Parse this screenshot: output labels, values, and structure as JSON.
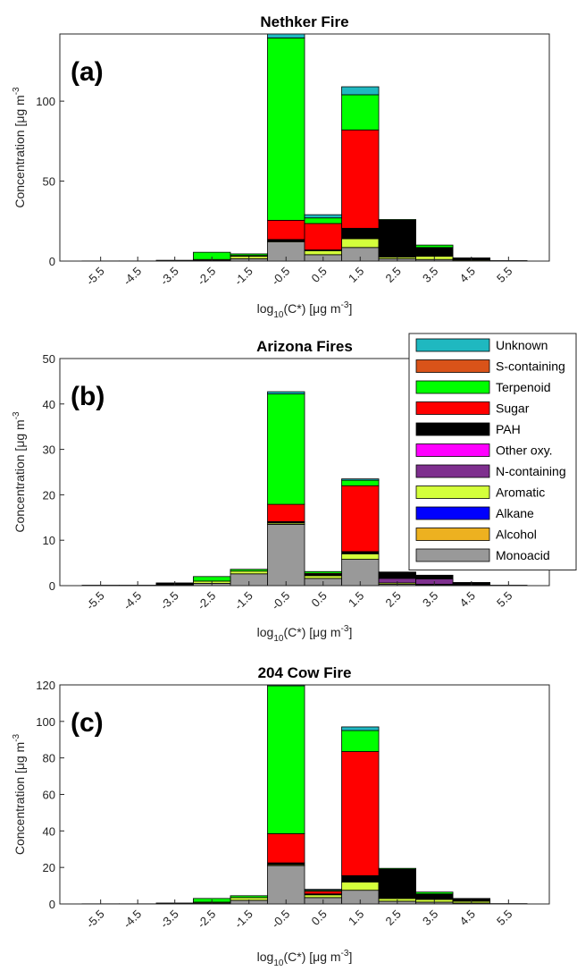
{
  "chart_data": [
    {
      "type": "bar",
      "stacked": true,
      "title": "Nethker Fire",
      "panel_label": "(a)",
      "xlabel": {
        "base": "log",
        "sub": "10",
        "main": "(C*) [μg m",
        "sup": "-3",
        "end": "]"
      },
      "ylabel": {
        "main": "Concentration [μg m",
        "sup": "-3"
      },
      "x": [
        -5.5,
        -4.5,
        -3.5,
        -2.5,
        -1.5,
        -0.5,
        0.5,
        1.5,
        2.5,
        3.5,
        4.5,
        5.5
      ],
      "xticks": [
        -5.5,
        -4.5,
        -3.5,
        -2.5,
        -1.5,
        -0.5,
        0.5,
        1.5,
        2.5,
        3.5,
        4.5,
        5.5
      ],
      "xlim": [
        -6.6,
        6.6
      ],
      "ylim": [
        0,
        142
      ],
      "yticks": [
        0,
        50,
        100
      ],
      "series": [
        {
          "color": "#999999",
          "values": [
            0,
            0,
            0.1,
            0.5,
            1.5,
            12,
            4,
            8.5,
            1.5,
            1,
            0.3,
            0
          ]
        },
        {
          "color": "#edb120",
          "values": [
            0,
            0,
            0,
            0,
            0,
            0,
            0,
            0,
            0,
            0,
            0,
            0
          ]
        },
        {
          "color": "#0000ff",
          "values": [
            0,
            0,
            0,
            0,
            0,
            0,
            0,
            0,
            0,
            0,
            0,
            0
          ]
        },
        {
          "color": "#d4ff3b",
          "values": [
            0,
            0,
            0,
            0.5,
            1.5,
            0.5,
            2.5,
            5.5,
            1,
            2,
            0.5,
            0
          ]
        },
        {
          "color": "#7e2f8e",
          "values": [
            0,
            0,
            0,
            0,
            0,
            0,
            0,
            0,
            0.5,
            0,
            0,
            0
          ]
        },
        {
          "color": "#ff00ff",
          "values": [
            0,
            0,
            0,
            0,
            0,
            0,
            0,
            0,
            0,
            0,
            0,
            0
          ]
        },
        {
          "color": "#000000",
          "values": [
            0.1,
            0.1,
            0.4,
            0,
            0.5,
            1,
            0.5,
            6.5,
            22.5,
            5.5,
            1.2,
            0.3
          ]
        },
        {
          "color": "#ff0000",
          "values": [
            0,
            0,
            0,
            0,
            0,
            12,
            16.5,
            61.5,
            0,
            0,
            0,
            0
          ]
        },
        {
          "color": "#00ff00",
          "values": [
            0,
            0,
            0,
            4.5,
            1,
            114,
            3.5,
            22,
            0.5,
            1.5,
            0,
            0
          ]
        },
        {
          "color": "#d95319",
          "values": [
            0,
            0,
            0,
            0,
            0,
            0,
            0,
            0,
            0,
            0,
            0,
            0
          ]
        },
        {
          "color": "#1fb8c0",
          "values": [
            0,
            0,
            0,
            0,
            0,
            4,
            2,
            5,
            0,
            0,
            0,
            0
          ]
        }
      ]
    },
    {
      "type": "bar",
      "stacked": true,
      "title": "Arizona Fires",
      "panel_label": "(b)",
      "xlabel": {
        "base": "log",
        "sub": "10",
        "main": "(C*) [μg m",
        "sup": "-3",
        "end": "]"
      },
      "ylabel": {
        "main": "Concentration [μg m",
        "sup": "-3"
      },
      "x": [
        -5.5,
        -4.5,
        -3.5,
        -2.5,
        -1.5,
        -0.5,
        0.5,
        1.5,
        2.5,
        3.5,
        4.5,
        5.5
      ],
      "xticks": [
        -5.5,
        -4.5,
        -3.5,
        -2.5,
        -1.5,
        -0.5,
        0.5,
        1.5,
        2.5,
        3.5,
        4.5,
        5.5
      ],
      "xlim": [
        -6.6,
        6.6
      ],
      "ylim": [
        0,
        50
      ],
      "yticks": [
        0,
        10,
        20,
        30,
        40,
        50
      ],
      "legend": "upper right",
      "series": [
        {
          "name": "Monoacid",
          "color": "#999999",
          "values": [
            0,
            0,
            0.2,
            0.5,
            2.6,
            13.5,
            1.6,
            5.8,
            0.3,
            0.2,
            0,
            0
          ]
        },
        {
          "name": "Alcohol",
          "color": "#edb120",
          "values": [
            0,
            0,
            0,
            0,
            0,
            0,
            0,
            0,
            0,
            0,
            0,
            0
          ]
        },
        {
          "name": "Alkane",
          "color": "#0000ff",
          "values": [
            0,
            0,
            0,
            0,
            0,
            0,
            0,
            0,
            0,
            0,
            0,
            0
          ]
        },
        {
          "name": "Aromatic",
          "color": "#d4ff3b",
          "values": [
            0,
            0,
            0,
            0.5,
            0.6,
            0.3,
            0.6,
            1.2,
            0.3,
            0.1,
            0,
            0
          ]
        },
        {
          "name": "N-containing",
          "color": "#7e2f8e",
          "values": [
            0,
            0,
            0,
            0,
            0,
            0,
            0,
            0,
            1,
            1.2,
            0.2,
            0
          ]
        },
        {
          "name": "Other oxy.",
          "color": "#ff00ff",
          "values": [
            0,
            0,
            0,
            0,
            0,
            0,
            0,
            0,
            0,
            0,
            0,
            0
          ]
        },
        {
          "name": "PAH",
          "color": "#000000",
          "values": [
            0.1,
            0.1,
            0.4,
            0,
            0,
            0.3,
            0.3,
            0.5,
            1.4,
            0.8,
            0.5,
            0.1
          ]
        },
        {
          "name": "Sugar",
          "color": "#ff0000",
          "values": [
            0,
            0,
            0,
            0,
            0,
            3.8,
            0.2,
            14.5,
            0,
            0,
            0,
            0
          ]
        },
        {
          "name": "Terpenoid",
          "color": "#00ff00",
          "values": [
            0,
            0,
            0,
            1,
            0.4,
            24.3,
            0.4,
            1.2,
            0,
            0,
            0,
            0
          ]
        },
        {
          "name": "S-containing",
          "color": "#d95319",
          "values": [
            0,
            0,
            0,
            0,
            0,
            0,
            0,
            0,
            0,
            0,
            0,
            0
          ]
        },
        {
          "name": "Unknown",
          "color": "#1fb8c0",
          "values": [
            0,
            0,
            0,
            0,
            0,
            0.5,
            0,
            0.3,
            0,
            0,
            0,
            0
          ]
        }
      ]
    },
    {
      "type": "bar",
      "stacked": true,
      "title": "204 Cow Fire",
      "panel_label": "(c)",
      "xlabel": {
        "base": "log",
        "sub": "10",
        "main": "(C*) [μg m",
        "sup": "-3",
        "end": "]"
      },
      "ylabel": {
        "main": "Concentration [μg m",
        "sup": "-3"
      },
      "x": [
        -5.5,
        -4.5,
        -3.5,
        -2.5,
        -1.5,
        -0.5,
        0.5,
        1.5,
        2.5,
        3.5,
        4.5,
        5.5
      ],
      "xticks": [
        -5.5,
        -4.5,
        -3.5,
        -2.5,
        -1.5,
        -0.5,
        0.5,
        1.5,
        2.5,
        3.5,
        4.5,
        5.5
      ],
      "xlim": [
        -6.6,
        6.6
      ],
      "ylim": [
        0,
        120
      ],
      "yticks": [
        0,
        20,
        40,
        60,
        80,
        100,
        120
      ],
      "series": [
        {
          "color": "#999999",
          "values": [
            0,
            0,
            0.1,
            0.5,
            2,
            21,
            3.5,
            7.5,
            1.5,
            1,
            0.5,
            0
          ]
        },
        {
          "color": "#edb120",
          "values": [
            0,
            0,
            0,
            0,
            0,
            0,
            0,
            0,
            0,
            0,
            0,
            0
          ]
        },
        {
          "color": "#0000ff",
          "values": [
            0,
            0,
            0,
            0,
            0,
            0,
            0,
            0,
            0,
            0,
            0,
            0
          ]
        },
        {
          "color": "#d4ff3b",
          "values": [
            0,
            0,
            0,
            0.5,
            1.5,
            0.5,
            1.5,
            4.5,
            1.5,
            1.5,
            1,
            0
          ]
        },
        {
          "color": "#7e2f8e",
          "values": [
            0,
            0,
            0,
            0,
            0,
            0,
            0,
            0,
            0,
            0,
            0.3,
            0
          ]
        },
        {
          "color": "#ff00ff",
          "values": [
            0,
            0,
            0,
            0,
            0,
            0,
            0,
            0,
            0,
            0,
            0,
            0
          ]
        },
        {
          "color": "#000000",
          "values": [
            0.1,
            0.1,
            0.4,
            0,
            0,
            1,
            0.5,
            3.5,
            16,
            3,
            1.2,
            0.2
          ]
        },
        {
          "color": "#ff0000",
          "values": [
            0,
            0,
            0,
            0,
            0,
            16,
            1.5,
            68,
            0,
            0,
            0,
            0
          ]
        },
        {
          "color": "#00ff00",
          "values": [
            0,
            0,
            0,
            2,
            1,
            81,
            0.5,
            11.5,
            0.5,
            1,
            0,
            0
          ]
        },
        {
          "color": "#d95319",
          "values": [
            0,
            0,
            0,
            0,
            0,
            0,
            0,
            0,
            0,
            0,
            0,
            0
          ]
        },
        {
          "color": "#1fb8c0",
          "values": [
            0,
            0,
            0,
            0,
            0,
            0.5,
            0.5,
            2,
            0,
            0,
            0,
            0
          ]
        }
      ]
    }
  ]
}
